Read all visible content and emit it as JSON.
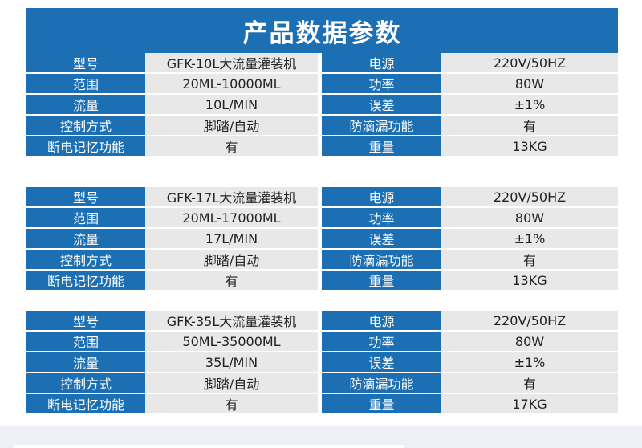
{
  "title": "产品数据参数",
  "labels": {
    "model": "型号",
    "range": "范围",
    "flow": "流量",
    "control": "控制方式",
    "memory": "断电记忆功能",
    "power_source": "电源",
    "power": "功率",
    "error": "误差",
    "anti_drip": "防滴漏功能",
    "weight": "重量"
  },
  "products": [
    {
      "model": "GFK-10L大流量灌装机",
      "range": "20ML-10000ML",
      "flow": "10L/MIN",
      "control": "脚踏/自动",
      "memory": "有",
      "power_source": "220V/50HZ",
      "power": "80W",
      "error": "±1%",
      "anti_drip": "有",
      "weight": "13KG"
    },
    {
      "model": "GFK-17L大流量灌装机",
      "range": "20ML-17000ML",
      "flow": "17L/MIN",
      "control": "脚踏/自动",
      "memory": "有",
      "power_source": "220V/50HZ",
      "power": "80W",
      "error": "±1%",
      "anti_drip": "有",
      "weight": "13KG"
    },
    {
      "model": "GFK-35L大流量灌装机",
      "range": "50ML-35000ML",
      "flow": "35L/MIN",
      "control": "脚踏/自动",
      "memory": "有",
      "power_source": "220V/50HZ",
      "power": "80W",
      "error": "±1%",
      "anti_drip": "有",
      "weight": "17KG"
    }
  ],
  "colors": {
    "header_blue": "#1c6fb3",
    "value_gray": "#e8e8e8"
  }
}
